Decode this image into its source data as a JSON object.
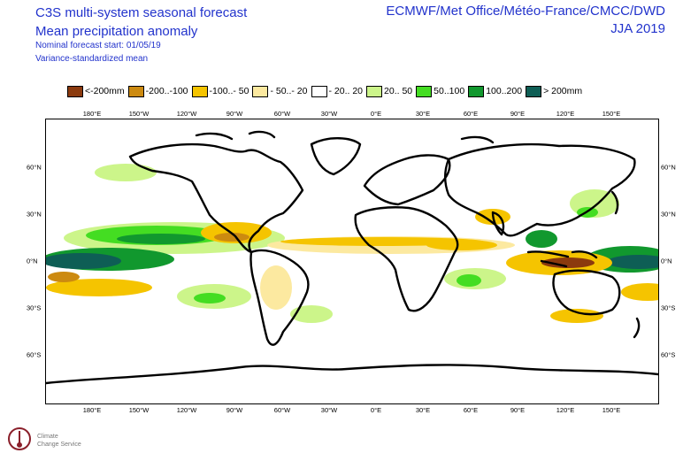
{
  "header": {
    "title_line1": "C3S multi-system seasonal forecast",
    "title_line2": "Mean precipitation anomaly",
    "subtitle_line1": "Nominal forecast start: 01/05/19",
    "subtitle_line2": "Variance-standardized mean",
    "right_line1": "ECMWF/Met Office/Météo-France/CMCC/DWD",
    "right_line2": "JJA 2019"
  },
  "legend": [
    {
      "label": "<-200mm",
      "color": "#8b3a0e"
    },
    {
      "label": "-200..-100",
      "color": "#cc8a10"
    },
    {
      "label": "-100..- 50",
      "color": "#f5c400"
    },
    {
      "label": "- 50..- 20",
      "color": "#fce9a0"
    },
    {
      "label": "- 20.. 20",
      "color": "#ffffff"
    },
    {
      "label": "20.. 50",
      "color": "#ccf58a"
    },
    {
      "label": "50..100",
      "color": "#44dd22"
    },
    {
      "label": "100..200",
      "color": "#11982e"
    },
    {
      "label": "> 200mm",
      "color": "#0e5e55"
    }
  ],
  "axes": {
    "lon_ticks": [
      "180°E",
      "150°W",
      "120°W",
      "90°W",
      "60°W",
      "30°W",
      "0°E",
      "30°E",
      "60°E",
      "90°E",
      "120°E",
      "150°E"
    ],
    "lat_ticks": [
      "60°N",
      "30°N",
      "0°N",
      "30°S",
      "60°S"
    ]
  },
  "logo": {
    "text_line1": "Climate",
    "text_line2": "Change Service"
  }
}
